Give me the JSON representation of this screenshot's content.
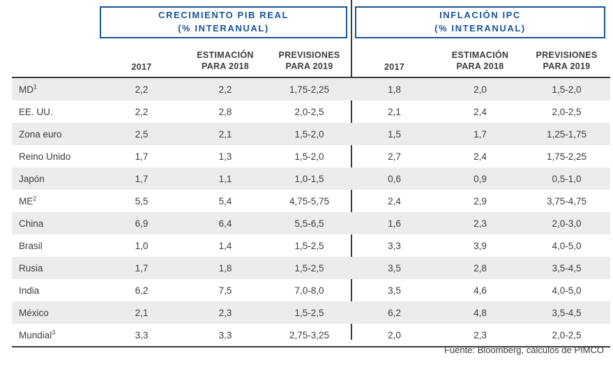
{
  "chart_data": {
    "type": "table",
    "sections": [
      {
        "title": "CRECIMIENTO PIB REAL",
        "subtitle": "(% INTERANUAL)",
        "columns": [
          "2017",
          "ESTIMACIÓN PARA 2018",
          "PREVISIONES PARA 2019"
        ]
      },
      {
        "title": "INFLACIÓN IPC",
        "subtitle": "(% INTERANUAL)",
        "columns": [
          "2017",
          "ESTIMACIÓN PARA 2018",
          "PREVISIONES PARA 2019"
        ]
      }
    ],
    "rows": [
      {
        "label": "MD",
        "label_sup": "1",
        "crecimiento_pib_real": [
          "2,2",
          "2,2",
          "1,75-2,25"
        ],
        "inflacion_ipc": [
          "1,8",
          "2,0",
          "1,5-2,0"
        ]
      },
      {
        "label": "EE. UU.",
        "label_sup": "",
        "crecimiento_pib_real": [
          "2,2",
          "2,8",
          "2,0-2,5"
        ],
        "inflacion_ipc": [
          "2,1",
          "2,4",
          "2,0-2,5"
        ]
      },
      {
        "label": "Zona euro",
        "label_sup": "",
        "crecimiento_pib_real": [
          "2,5",
          "2,1",
          "1,5-2,0"
        ],
        "inflacion_ipc": [
          "1,5",
          "1,7",
          "1,25-1,75"
        ]
      },
      {
        "label": "Reino Unido",
        "label_sup": "",
        "crecimiento_pib_real": [
          "1,7",
          "1,3",
          "1,5-2,0"
        ],
        "inflacion_ipc": [
          "2,7",
          "2,4",
          "1,75-2,25"
        ]
      },
      {
        "label": "Japón",
        "label_sup": "",
        "crecimiento_pib_real": [
          "1,7",
          "1,1",
          "1,0-1,5"
        ],
        "inflacion_ipc": [
          "0,6",
          "0,9",
          "0,5-1,0"
        ]
      },
      {
        "label": "ME",
        "label_sup": "2",
        "crecimiento_pib_real": [
          "5,5",
          "5,4",
          "4,75-5,75"
        ],
        "inflacion_ipc": [
          "2,4",
          "2,9",
          "3,75-4,75"
        ]
      },
      {
        "label": "China",
        "label_sup": "",
        "crecimiento_pib_real": [
          "6,9",
          "6,4",
          "5,5-6,5"
        ],
        "inflacion_ipc": [
          "1,6",
          "2,3",
          "2,0-3,0"
        ]
      },
      {
        "label": "Brasil",
        "label_sup": "",
        "crecimiento_pib_real": [
          "1,0",
          "1,4",
          "1,5-2,5"
        ],
        "inflacion_ipc": [
          "3,3",
          "3,9",
          "4,0-5,0"
        ]
      },
      {
        "label": "Rusia",
        "label_sup": "",
        "crecimiento_pib_real": [
          "1,7",
          "1,8",
          "1,5-2,5"
        ],
        "inflacion_ipc": [
          "3,5",
          "2,8",
          "3,5-4,5"
        ]
      },
      {
        "label": "India",
        "label_sup": "",
        "crecimiento_pib_real": [
          "6,2",
          "7,5",
          "7,0-8,0"
        ],
        "inflacion_ipc": [
          "3,5",
          "4,6",
          "4,0-5,0"
        ]
      },
      {
        "label": "México",
        "label_sup": "",
        "crecimiento_pib_real": [
          "2,1",
          "2,3",
          "1,5-2,5"
        ],
        "inflacion_ipc": [
          "6,2",
          "4,8",
          "3,5-4,5"
        ]
      },
      {
        "label": "Mundial",
        "label_sup": "3",
        "crecimiento_pib_real": [
          "3,3",
          "3,3",
          "2,75-3,25"
        ],
        "inflacion_ipc": [
          "2,0",
          "2,3",
          "2,0-2,5"
        ]
      }
    ],
    "source_note": "Fuente: Bloomberg, cálculos de PIMCO"
  },
  "colors": {
    "brand_blue": "#17549B",
    "text_dark": "#3C3C3C",
    "row_stripe": "#ECECEC",
    "divider_dark": "#3A3A3A"
  }
}
